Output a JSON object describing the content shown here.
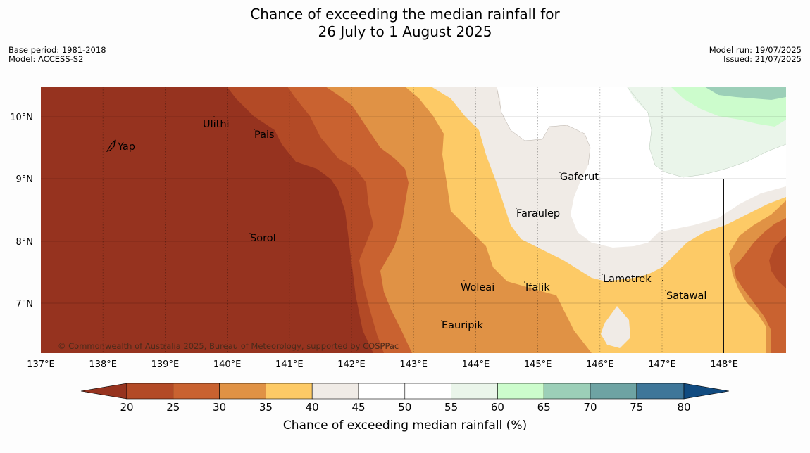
{
  "title": {
    "line1": "Chance of exceeding the median rainfall for",
    "line2": "26 July to 1 August 2025"
  },
  "meta_left": {
    "base_period": "Base period: 1981-2018",
    "model": "Model: ACCESS-S2"
  },
  "meta_right": {
    "model_run": "Model run: 19/07/2025",
    "issued": "Issued: 21/07/2025"
  },
  "map": {
    "lon_ticks": [
      "137°E",
      "138°E",
      "139°E",
      "140°E",
      "141°E",
      "142°E",
      "143°E",
      "144°E",
      "145°E",
      "146°E",
      "147°E",
      "148°E"
    ],
    "lat_ticks": [
      "10°N",
      "9°N",
      "8°N",
      "7°N"
    ],
    "places": {
      "yap": "Yap",
      "ulithi": "Ulithi",
      "pais": "Pais",
      "sorol": "Sorol",
      "gaferut": "Gaferut",
      "faraulep": "Faraulep",
      "woleai": "Woleai",
      "ifalik": "Ifalik",
      "lamotrek": "Lamotrek",
      "satawal": "Satawal",
      "eauripik": "Eauripik"
    },
    "copyright": "© Commonwealth of Australia 2025, Bureau of Meteorology, supported by COSPPac"
  },
  "colorbar": {
    "ticks": [
      "20",
      "25",
      "30",
      "35",
      "40",
      "45",
      "50",
      "55",
      "60",
      "65",
      "70",
      "75",
      "80"
    ],
    "label": "Chance of exceeding median rainfall (%)",
    "colors": {
      "below_20": "#96331f",
      "c20_25": "#b34a26",
      "c25_30": "#c96230",
      "c30_35": "#e09245",
      "c35_40": "#fdca66",
      "c40_45": "#f0ebe6",
      "c45_50": "#ffffff",
      "c50_55": "#ffffff",
      "c55_60": "#eaf5ea",
      "c60_65": "#ccfccc",
      "c65_70": "#9ccfb8",
      "c70_75": "#6ea3a3",
      "c75_80": "#3e7699",
      "above_80": "#114b80"
    }
  }
}
